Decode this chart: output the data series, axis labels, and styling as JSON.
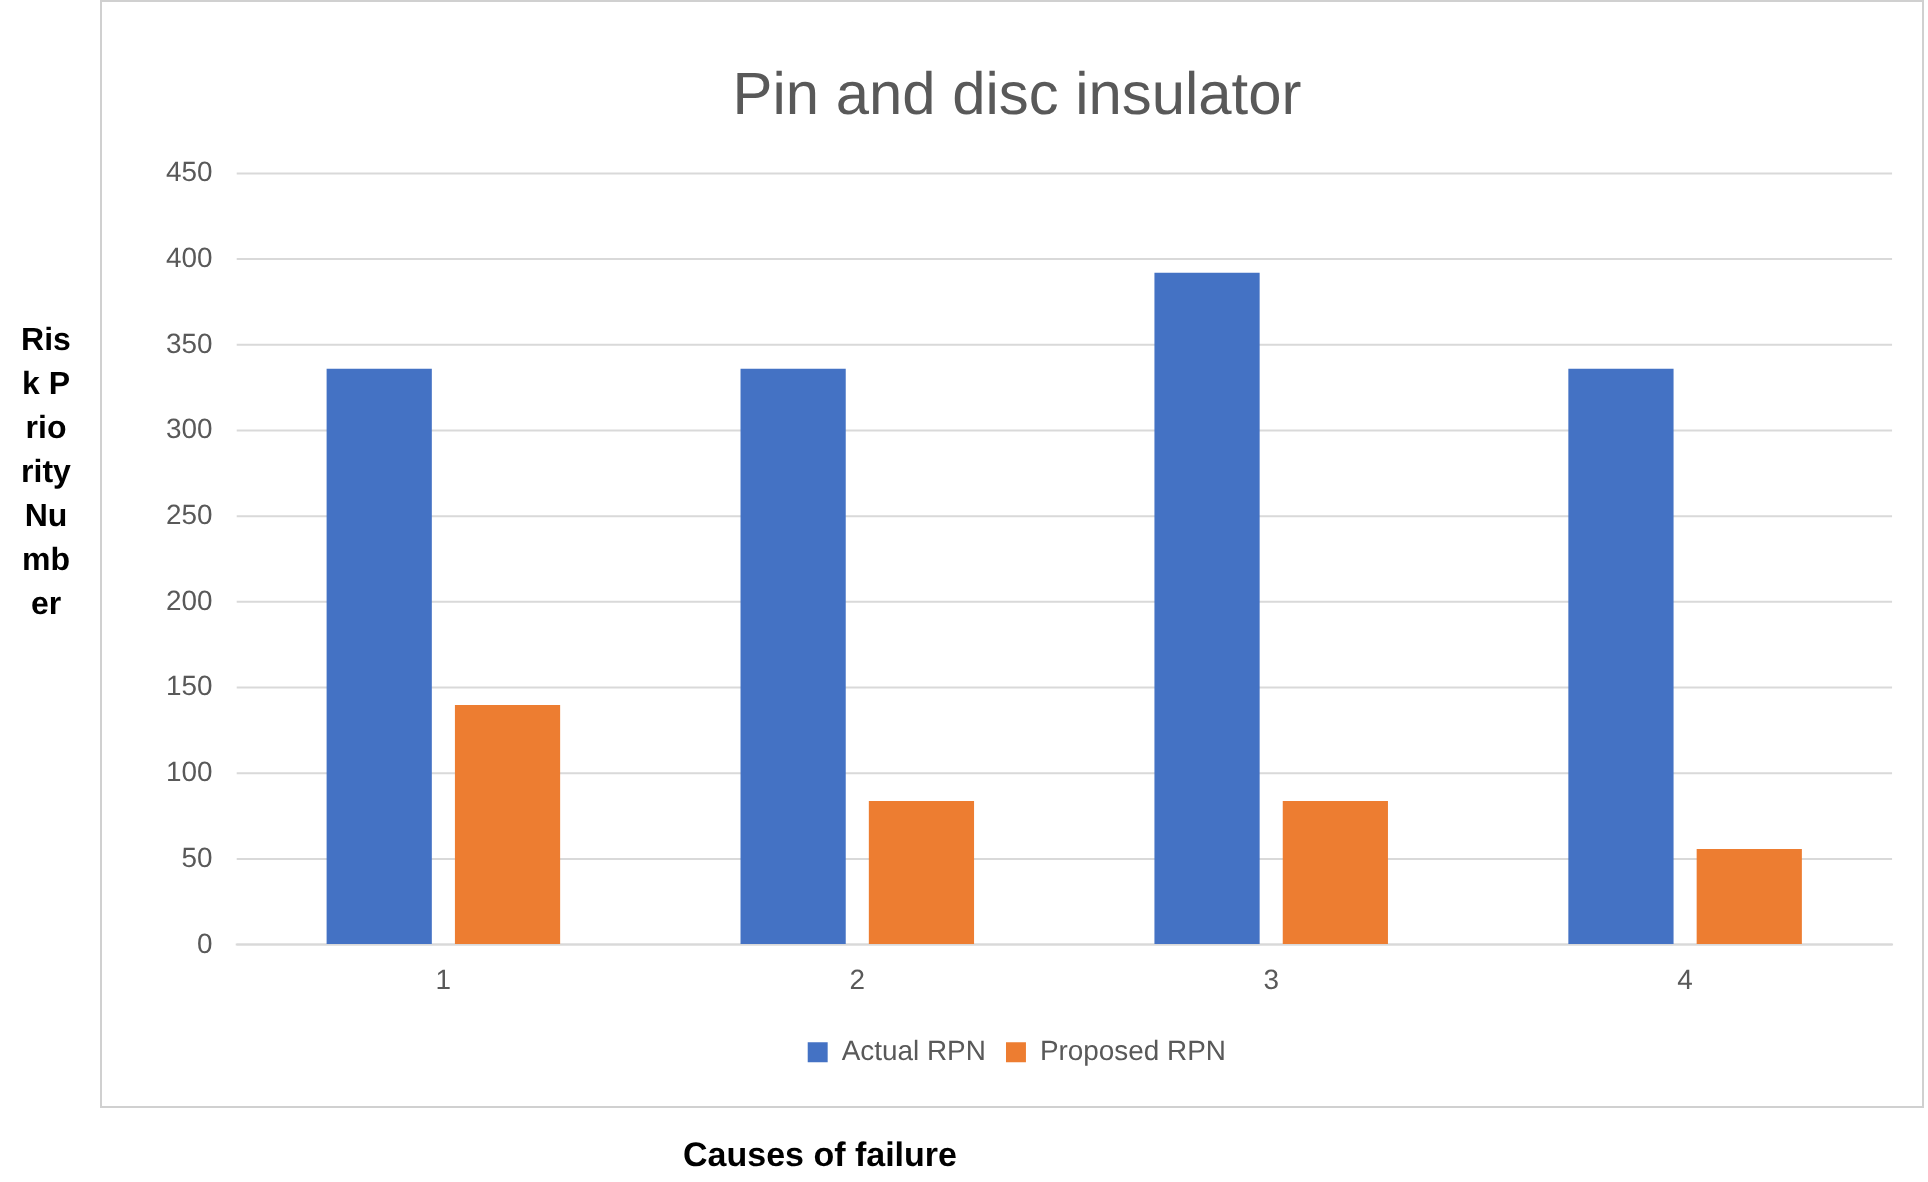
{
  "chart_data": {
    "type": "bar",
    "title": "Pin and disc insulator",
    "xlabel": "Causes of failure",
    "ylabel": "Risk Priority Number",
    "categories": [
      "1",
      "2",
      "3",
      "4"
    ],
    "series": [
      {
        "name": "Actual RPN",
        "color": "#4472c4",
        "values": [
          336,
          336,
          392,
          336
        ]
      },
      {
        "name": "Proposed RPN",
        "color": "#ed7d31",
        "values": [
          140,
          84,
          84,
          56
        ]
      }
    ],
    "ylim": [
      0,
      450
    ],
    "yticks": [
      0,
      50,
      100,
      150,
      200,
      250,
      300,
      350,
      400,
      450
    ],
    "grid": "y",
    "legend": "bottom"
  }
}
